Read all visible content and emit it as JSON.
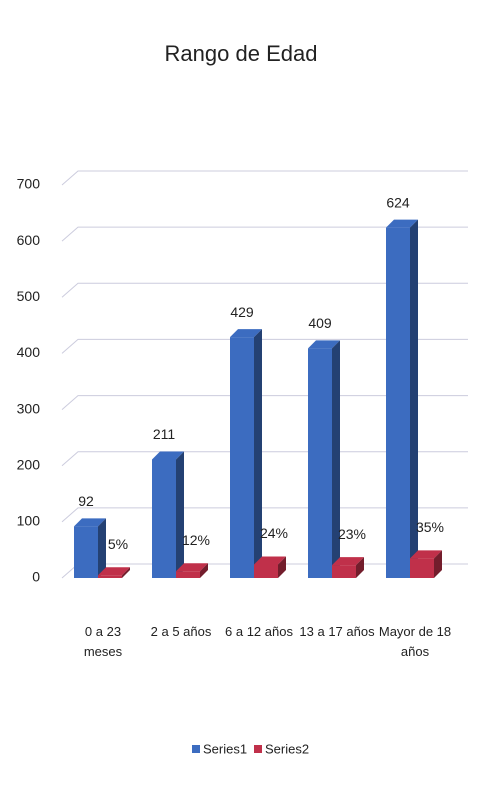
{
  "chart_data": {
    "type": "bar3d",
    "title": "Rango de Edad",
    "categories": [
      "0 a 23 meses",
      "2 a 5 años",
      "6 a 12 años",
      "13 a 17 años",
      "Mayor de 18 años"
    ],
    "series": [
      {
        "name": "Series1",
        "color": "#3c6cc0",
        "values": [
          92,
          211,
          429,
          409,
          624
        ]
      },
      {
        "name": "Series2",
        "color": "#c0304a",
        "values": [
          5,
          12,
          24,
          23,
          35
        ],
        "value_labels": [
          "5%",
          "12%",
          "24%",
          "23%",
          "35%"
        ]
      }
    ],
    "ylim": [
      0,
      700
    ],
    "yticks": [
      0,
      100,
      200,
      300,
      400,
      500,
      600,
      700
    ],
    "grid": true,
    "legend": "bottom"
  }
}
